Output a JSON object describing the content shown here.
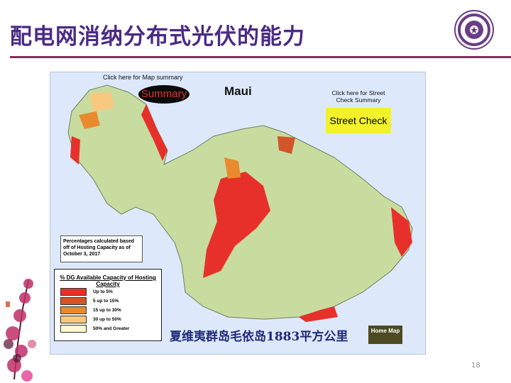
{
  "slide": {
    "title": "配电网消纳分布式光伏的能力",
    "page_number": "18"
  },
  "map": {
    "heading": "Maui",
    "map_summary_hint": "Click here for Map summary",
    "summary_button": "Summary",
    "street_hint": "Click here for Street Check Summary",
    "street_button": "Street Check",
    "note": "Percentages calculated based off of Hosting Capacity as of October 3, 2017",
    "legend": {
      "title": "% DG Available Capacity of Hosting Capacity",
      "items": [
        {
          "label": "Up to 5%",
          "color": "#e8302a"
        },
        {
          "label": "5 up to 15%",
          "color": "#d4552a"
        },
        {
          "label": "15 up to 30%",
          "color": "#ea8a2e"
        },
        {
          "label": "30 up to 50%",
          "color": "#f7c87e"
        },
        {
          "label": "50% and Greater",
          "color": "#fdf8d0"
        }
      ]
    },
    "home_button": "Home Map",
    "caption": "夏维夷群岛毛依岛1883平方公里"
  },
  "colors": {
    "title": "#4b2a86",
    "rule": "#8a2a5a",
    "land": "#c8dca0",
    "ocean": "#dde9fa"
  }
}
